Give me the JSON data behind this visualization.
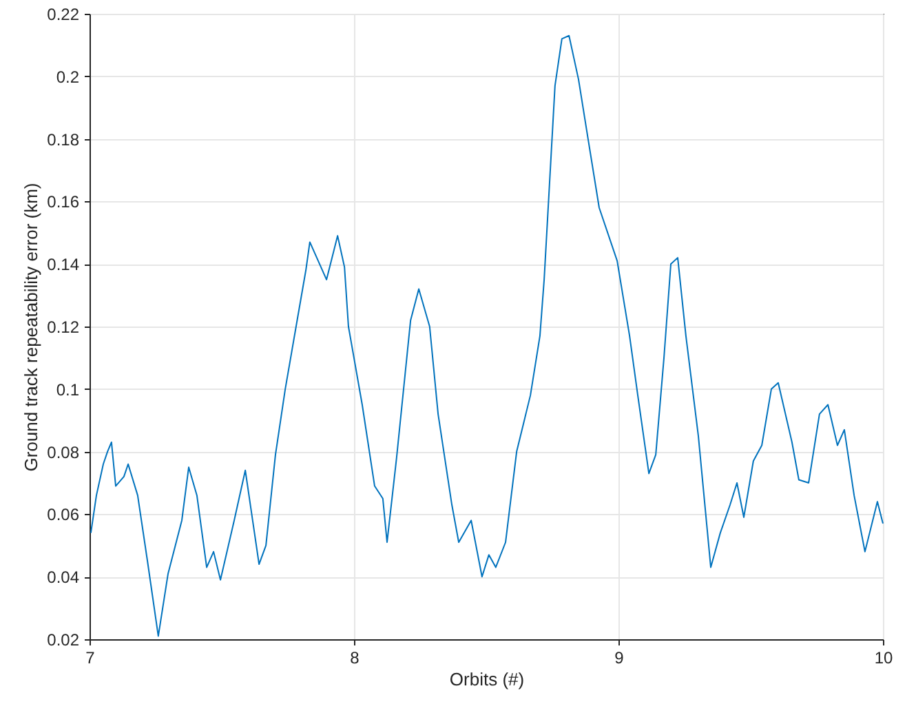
{
  "chart_data": {
    "type": "line",
    "xlabel": "Orbits (#)",
    "ylabel": "Ground track repeatability error (km)",
    "xlim": [
      7,
      10
    ],
    "xticks": [
      7,
      8,
      9,
      10
    ],
    "ylim": [
      0.02,
      0.22
    ],
    "yticks": [
      0.02,
      0.04,
      0.06,
      0.08,
      0.1,
      0.12,
      0.14,
      0.16,
      0.18,
      0.2,
      0.22
    ],
    "grid": true,
    "marker": "none",
    "line_style": "solid",
    "series": [
      {
        "color": "#0072bd",
        "x": [
          7.005,
          7.026,
          7.052,
          7.068,
          7.083,
          7.099,
          7.13,
          7.146,
          7.182,
          7.219,
          7.26,
          7.297,
          7.349,
          7.375,
          7.406,
          7.443,
          7.469,
          7.495,
          7.547,
          7.589,
          7.641,
          7.667,
          7.703,
          7.74,
          7.781,
          7.818,
          7.833,
          7.896,
          7.938,
          7.964,
          7.979,
          8.031,
          8.078,
          8.109,
          8.125,
          8.161,
          8.214,
          8.245,
          8.286,
          8.318,
          8.37,
          8.396,
          8.443,
          8.484,
          8.51,
          8.536,
          8.573,
          8.615,
          8.667,
          8.703,
          8.719,
          8.76,
          8.786,
          8.813,
          8.849,
          8.885,
          8.927,
          8.995,
          9.042,
          9.073,
          9.115,
          9.141,
          9.172,
          9.198,
          9.224,
          9.255,
          9.302,
          9.349,
          9.385,
          9.422,
          9.448,
          9.474,
          9.51,
          9.542,
          9.578,
          9.604,
          9.656,
          9.682,
          9.719,
          9.76,
          9.792,
          9.828,
          9.854,
          9.891,
          9.932,
          9.979,
          10
        ],
        "values": [
          0.054,
          0.066,
          0.076,
          0.08,
          0.083,
          0.069,
          0.072,
          0.076,
          0.066,
          0.045,
          0.021,
          0.041,
          0.058,
          0.075,
          0.066,
          0.043,
          0.048,
          0.039,
          0.058,
          0.074,
          0.044,
          0.05,
          0.079,
          0.1,
          0.12,
          0.138,
          0.147,
          0.135,
          0.149,
          0.139,
          0.12,
          0.095,
          0.069,
          0.065,
          0.051,
          0.078,
          0.122,
          0.132,
          0.12,
          0.092,
          0.063,
          0.051,
          0.058,
          0.04,
          0.047,
          0.043,
          0.051,
          0.08,
          0.098,
          0.117,
          0.135,
          0.197,
          0.212,
          0.213,
          0.199,
          0.18,
          0.158,
          0.141,
          0.117,
          0.098,
          0.073,
          0.079,
          0.11,
          0.14,
          0.142,
          0.117,
          0.085,
          0.043,
          0.054,
          0.063,
          0.07,
          0.059,
          0.077,
          0.082,
          0.1,
          0.102,
          0.083,
          0.071,
          0.07,
          0.092,
          0.095,
          0.082,
          0.087,
          0.066,
          0.048,
          0.064,
          0.057
        ]
      }
    ]
  }
}
